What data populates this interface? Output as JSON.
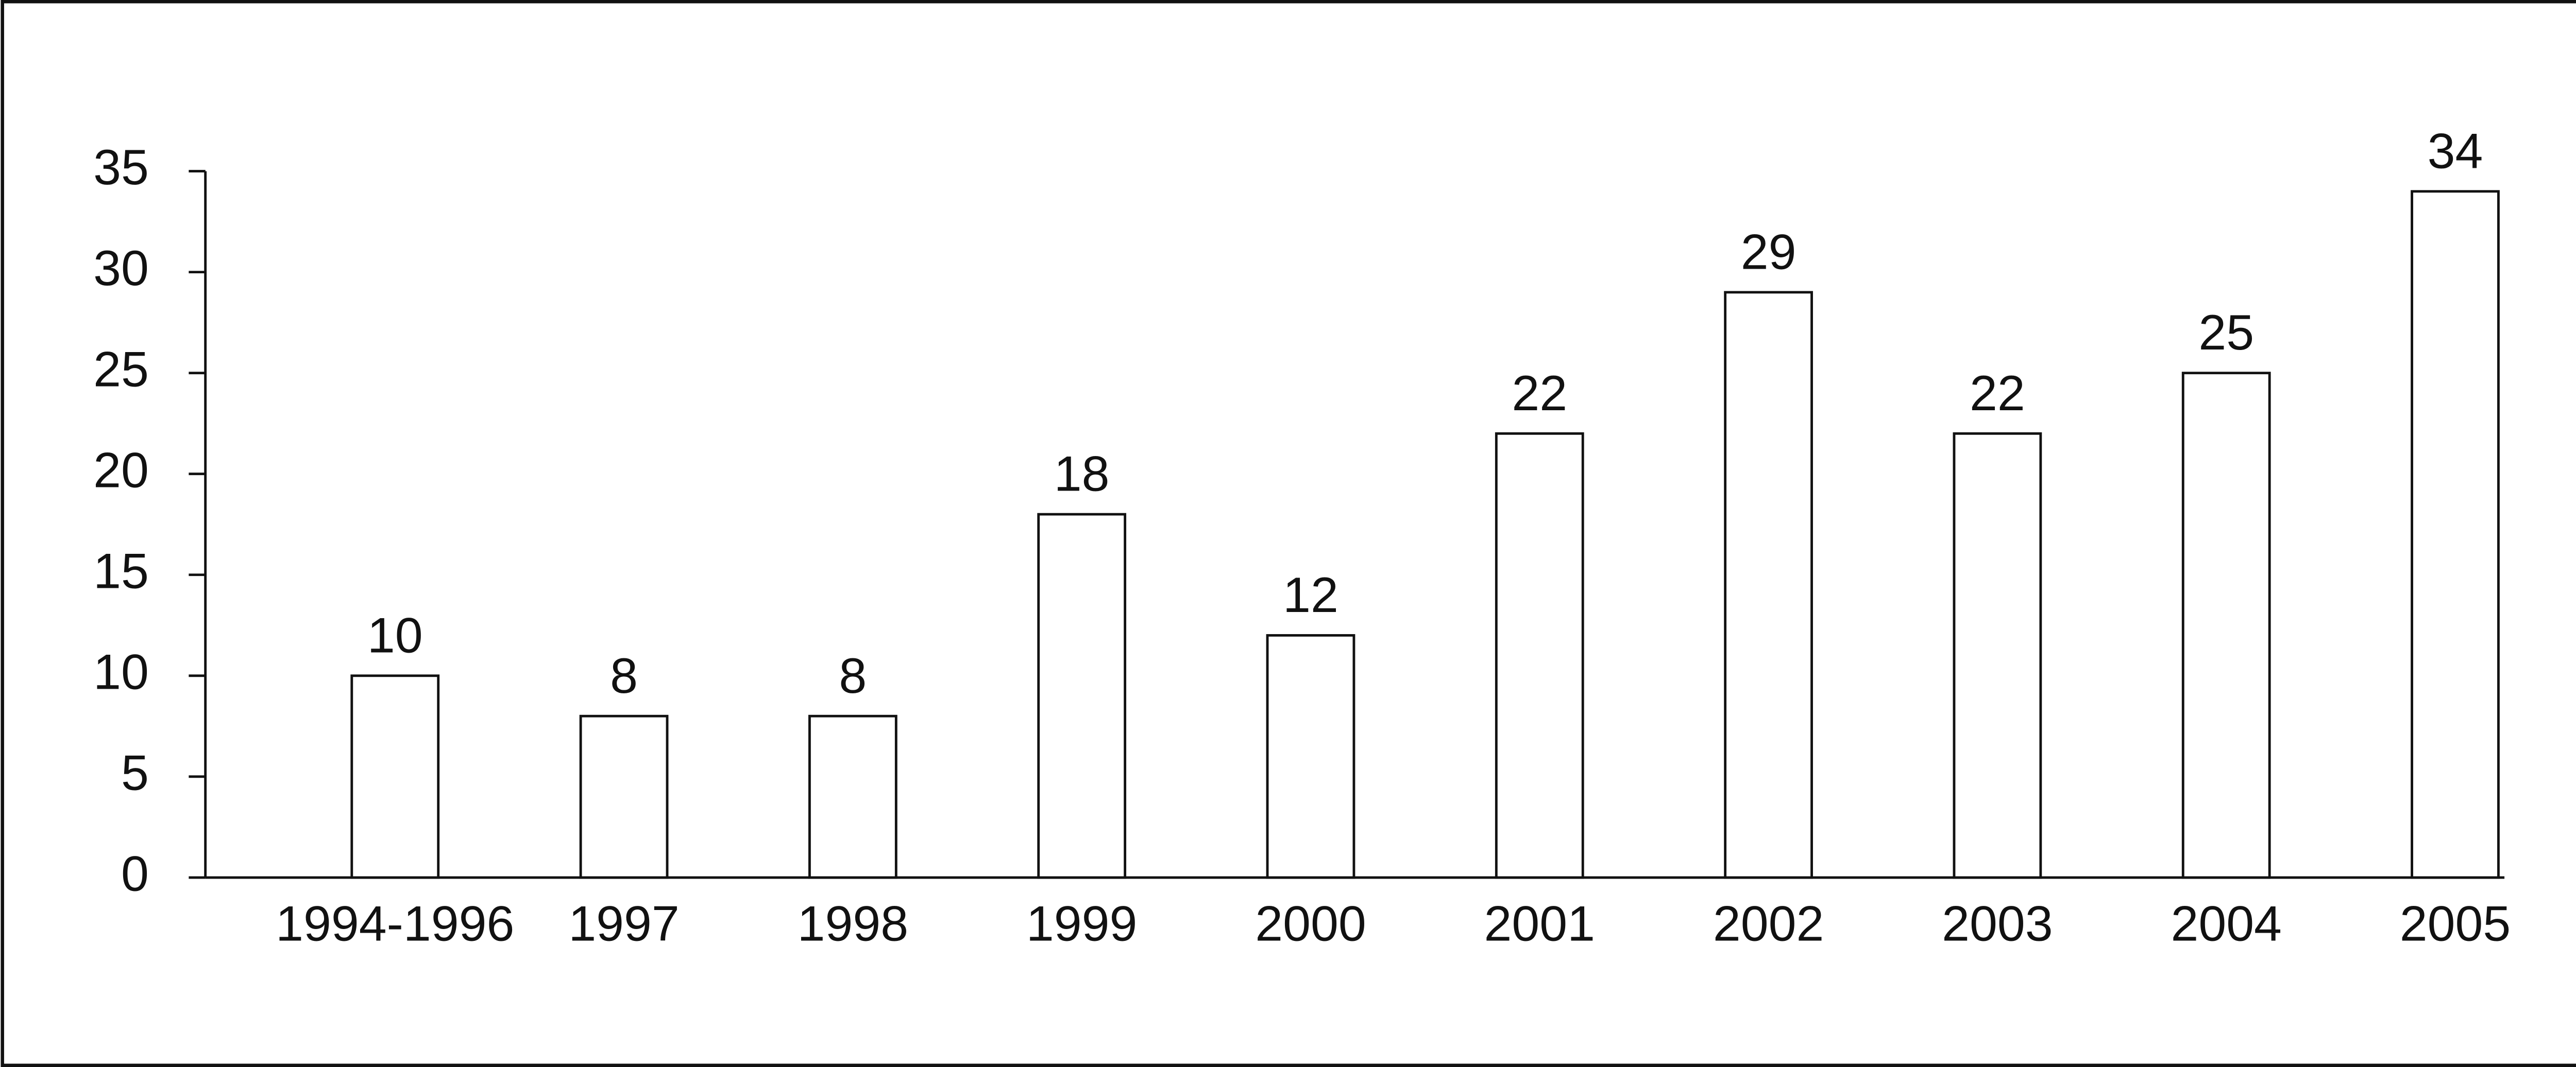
{
  "chart_data": {
    "type": "bar",
    "categories": [
      "1994-1996",
      "1997",
      "1998",
      "1999",
      "2000",
      "2001",
      "2002",
      "2003",
      "2004",
      "2005"
    ],
    "values": [
      10,
      8,
      8,
      18,
      12,
      22,
      29,
      22,
      25,
      34
    ],
    "color": "#ffffff",
    "ylim": [
      0,
      35
    ],
    "yticks": [
      0,
      5,
      10,
      15,
      20,
      25,
      30,
      35
    ],
    "grid": false
  }
}
